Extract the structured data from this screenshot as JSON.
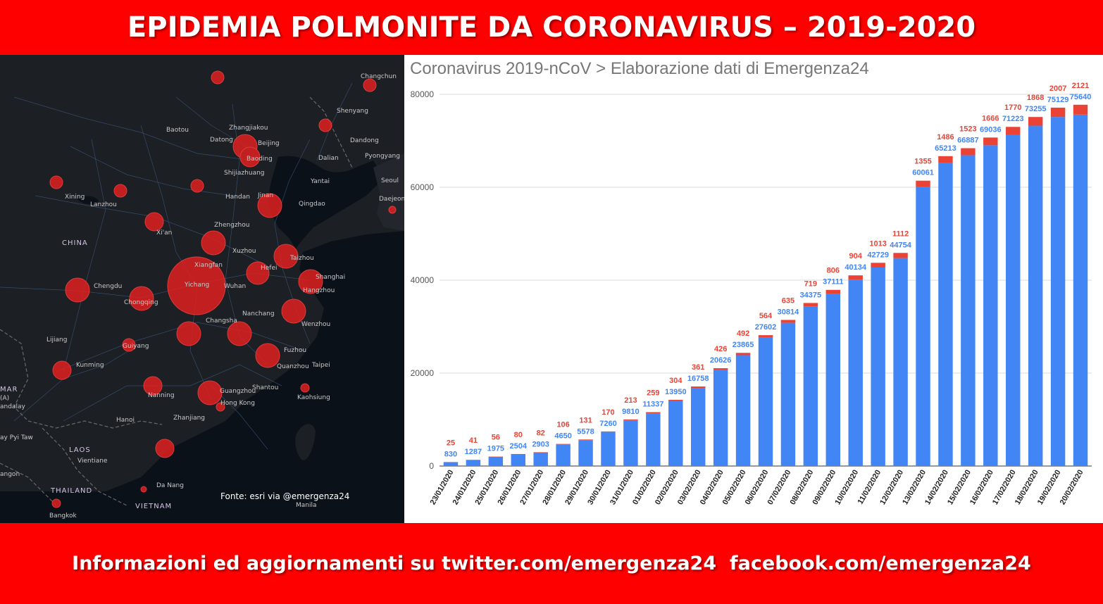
{
  "header": {
    "title": "EPIDEMIA POLMONITE DA CORONAVIRUS – 2019-2020"
  },
  "footer": {
    "text": "Informazioni ed aggiornamenti su twitter.com/emergenza24  facebook.com/emergenza24"
  },
  "map": {
    "credit": "Fonte: esri via @emergenza24",
    "labels": [
      "Changchun",
      "Shenyang",
      "Baotou",
      "Zhangjiakou",
      "Datong",
      "Beijing",
      "Baoding",
      "Dalian",
      "Dandong",
      "Pyongyang",
      "Shijiazhuang",
      "Yantai",
      "Seoul",
      "Daejeon",
      "Xining",
      "Lanzhou",
      "Handan",
      "Jinan",
      "Qingdao",
      "CHINA",
      "Zhengzhou",
      "Xi'an",
      "Xuzhou",
      "Taizhou",
      "Xiangfan",
      "Hefei",
      "Shanghai",
      "Chengdu",
      "Yichang",
      "Wuhan",
      "Hangzhou",
      "Chongqing",
      "Nanchang",
      "Changsha",
      "Wenzhou",
      "Lijiang",
      "Guiyang",
      "Fuzhou",
      "Kunming",
      "Quanzhou",
      "Taipei",
      "Nanning",
      "Guangzhou",
      "Shantou",
      "Hong Kong",
      "Kaohsiung",
      "Zhanjiang",
      "Hanoi",
      "LAOS",
      "Vientiane",
      "Da Nang",
      "THAILAND",
      "VIETNAM",
      "Bangkok",
      "Manila",
      "MAR",
      "(A)",
      "andalay",
      "ay Pyi Taw",
      "angon"
    ],
    "marker_color": "#e02020"
  },
  "chart_data": {
    "type": "bar",
    "stacked": true,
    "title": "Coronavirus 2019-nCoV > Elaborazione dati di Emergenza24",
    "xlabel": "",
    "ylabel": "",
    "ylim": [
      0,
      80000
    ],
    "yticks": [
      0,
      20000,
      40000,
      60000,
      80000
    ],
    "grid": true,
    "legend": "none",
    "categories": [
      "23/01/2020",
      "24/01/2020",
      "25/01/2020",
      "26/01/2020",
      "27/01/2020",
      "28/01/2020",
      "29/01/2020",
      "30/01/2020",
      "31/01/2020",
      "01/02/2020",
      "02/02/2020",
      "03/02/2020",
      "04/02/2020",
      "05/02/2020",
      "06/02/2020",
      "07/02/2020",
      "08/02/2020",
      "09/02/2020",
      "10/02/2020",
      "11/02/2020",
      "12/02/2020",
      "13/02/2020",
      "14/02/2020",
      "15/02/2020",
      "16/02/2020",
      "17/02/2020",
      "18/02/2020",
      "19/02/2020",
      "20/02/2020"
    ],
    "series": [
      {
        "color": "#4285f4",
        "values": [
          830,
          1287,
          1975,
          2504,
          2903,
          4650,
          5578,
          7260,
          9810,
          11337,
          13950,
          16758,
          20626,
          23865,
          27602,
          30814,
          34375,
          37111,
          40134,
          42729,
          44754,
          60061,
          65213,
          66887,
          69036,
          71223,
          73255,
          75129,
          75640
        ]
      },
      {
        "color": "#ea4335",
        "values": [
          25,
          41,
          56,
          80,
          82,
          106,
          131,
          170,
          213,
          259,
          304,
          361,
          426,
          492,
          564,
          635,
          719,
          806,
          904,
          1013,
          1112,
          1355,
          1486,
          1523,
          1666,
          1770,
          1868,
          2007,
          2121
        ]
      }
    ]
  }
}
